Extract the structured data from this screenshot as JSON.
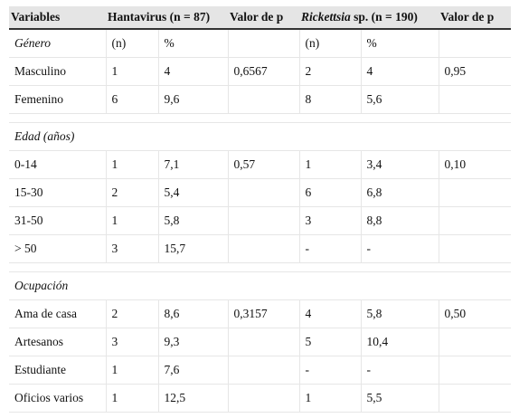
{
  "table": {
    "headers": [
      "Variables",
      "Hantavirus (n = 87)",
      "Valor de p",
      "Rickettsia",
      " sp. (n = 190)",
      "Valor de p"
    ],
    "genero": {
      "label": "Género",
      "sub": [
        "(n)",
        "%",
        "",
        "(n)",
        "%",
        ""
      ],
      "rows": [
        [
          "Masculino",
          "1",
          "4",
          "0,6567",
          "2",
          "4",
          "0,95"
        ],
        [
          "Femenino",
          "6",
          "9,6",
          "",
          "8",
          "5,6",
          ""
        ]
      ]
    },
    "edad": {
      "label": "Edad (años)",
      "rows": [
        [
          "0-14",
          "1",
          "7,1",
          "0,57",
          "1",
          "3,4",
          "0,10"
        ],
        [
          "15-30",
          "2",
          "5,4",
          "",
          "6",
          "6,8",
          ""
        ],
        [
          "31-50",
          "1",
          "5,8",
          "",
          "3",
          "8,8",
          ""
        ],
        [
          "> 50",
          "3",
          "15,7",
          "",
          "-",
          "-",
          ""
        ]
      ]
    },
    "ocupacion": {
      "label": "Ocupación",
      "rows": [
        [
          "Ama de casa",
          "2",
          "8,6",
          "0,3157",
          "4",
          "5,8",
          "0,50"
        ],
        [
          "Artesanos",
          "3",
          "9,3",
          "",
          "5",
          "10,4",
          ""
        ],
        [
          "Estudiante",
          "1",
          "7,6",
          "",
          "-",
          "-",
          ""
        ],
        [
          "Oficios varios",
          "1",
          "12,5",
          "",
          "1",
          "5,5",
          ""
        ]
      ]
    }
  }
}
